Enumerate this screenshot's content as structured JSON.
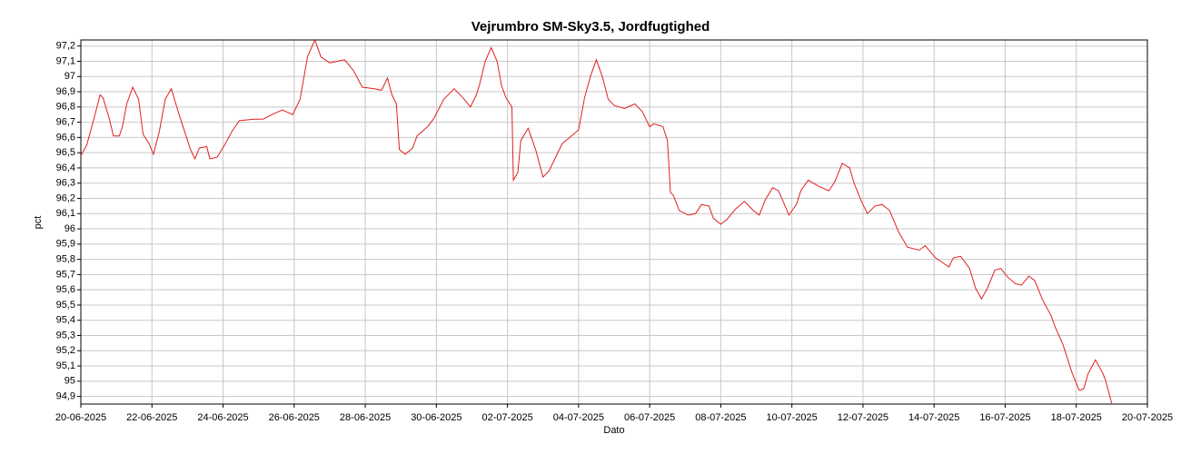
{
  "chart_data": {
    "type": "line",
    "title": "Vejrumbro SM-Sky3.5, Jordfugtighed",
    "x_label": "Dato",
    "y_label": "pct",
    "color": "#e02020",
    "grid": true,
    "xlim": [
      "2025-06-20",
      "2025-07-20"
    ],
    "xticks": [
      {
        "value": "2025-06-20",
        "label": "20-06-2025"
      },
      {
        "value": "2025-06-22",
        "label": "22-06-2025"
      },
      {
        "value": "2025-06-24",
        "label": "24-06-2025"
      },
      {
        "value": "2025-06-26",
        "label": "26-06-2025"
      },
      {
        "value": "2025-06-28",
        "label": "28-06-2025"
      },
      {
        "value": "2025-06-30",
        "label": "30-06-2025"
      },
      {
        "value": "2025-07-02",
        "label": "02-07-2025"
      },
      {
        "value": "2025-07-04",
        "label": "04-07-2025"
      },
      {
        "value": "2025-07-06",
        "label": "06-07-2025"
      },
      {
        "value": "2025-07-08",
        "label": "08-07-2025"
      },
      {
        "value": "2025-07-10",
        "label": "10-07-2025"
      },
      {
        "value": "2025-07-12",
        "label": "12-07-2025"
      },
      {
        "value": "2025-07-14",
        "label": "14-07-2025"
      },
      {
        "value": "2025-07-16",
        "label": "16-07-2025"
      },
      {
        "value": "2025-07-18",
        "label": "18-07-2025"
      },
      {
        "value": "2025-07-20",
        "label": "20-07-2025"
      }
    ],
    "ylim": [
      94.85,
      97.24
    ],
    "yticks": [
      {
        "value": 94.9,
        "label": "94,9"
      },
      95,
      {
        "value": 95.1,
        "label": "95,1"
      },
      {
        "value": 95.2,
        "label": "95,2"
      },
      {
        "value": 95.3,
        "label": "95,3"
      },
      {
        "value": 95.4,
        "label": "95,4"
      },
      {
        "value": 95.5,
        "label": "95,5"
      },
      {
        "value": 95.6,
        "label": "95,6"
      },
      {
        "value": 95.7,
        "label": "95,7"
      },
      {
        "value": 95.8,
        "label": "95,8"
      },
      {
        "value": 95.9,
        "label": "95,9"
      },
      96,
      {
        "value": 96.1,
        "label": "96,1"
      },
      {
        "value": 96.2,
        "label": "96,2"
      },
      {
        "value": 96.3,
        "label": "96,3"
      },
      {
        "value": 96.4,
        "label": "96,4"
      },
      {
        "value": 96.5,
        "label": "96,5"
      },
      {
        "value": 96.6,
        "label": "96,6"
      },
      {
        "value": 96.7,
        "label": "96,7"
      },
      {
        "value": 96.8,
        "label": "96,8"
      },
      {
        "value": 96.9,
        "label": "96,9"
      },
      97,
      {
        "value": 97.1,
        "label": "97,1"
      },
      {
        "value": 97.2,
        "label": "97,2"
      }
    ],
    "x": [
      "2025-06-20 00:00",
      "2025-06-20 04:00",
      "2025-06-20 09:00",
      "2025-06-20 13:00",
      "2025-06-20 15:00",
      "2025-06-20 19:00",
      "2025-06-20 22:00",
      "2025-06-21 02:00",
      "2025-06-21 04:00",
      "2025-06-21 07:00",
      "2025-06-21 11:00",
      "2025-06-21 15:00",
      "2025-06-21 18:00",
      "2025-06-21 22:00",
      "2025-06-22 01:00",
      "2025-06-22 05:00",
      "2025-06-22 09:00",
      "2025-06-22 13:00",
      "2025-06-22 18:00",
      "2025-06-22 23:00",
      "2025-06-23 02:00",
      "2025-06-23 05:00",
      "2025-06-23 08:00",
      "2025-06-23 13:00",
      "2025-06-23 15:00",
      "2025-06-23 20:00",
      "2025-06-24 01:00",
      "2025-06-24 06:00",
      "2025-06-24 11:00",
      "2025-06-24 21:00",
      "2025-06-25 03:00",
      "2025-06-25 09:00",
      "2025-06-25 16:00",
      "2025-06-25 23:00",
      "2025-06-26 04:00",
      "2025-06-26 09:00",
      "2025-06-26 14:00",
      "2025-06-26 18:00",
      "2025-06-27 00:00",
      "2025-06-27 05:00",
      "2025-06-27 10:00",
      "2025-06-27 16:00",
      "2025-06-27 22:00",
      "2025-06-28 06:00",
      "2025-06-28 11:00",
      "2025-06-28 15:00",
      "2025-06-28 18:00",
      "2025-06-28 21:00",
      "2025-06-28 23:00",
      "2025-06-29 03:00",
      "2025-06-29 08:00",
      "2025-06-29 11:00",
      "2025-06-29 18:00",
      "2025-06-29 22:00",
      "2025-06-30 05:00",
      "2025-06-30 12:00",
      "2025-06-30 18:00",
      "2025-06-30 23:00",
      "2025-07-01 03:00",
      "2025-07-01 05:00",
      "2025-07-01 09:00",
      "2025-07-01 13:00",
      "2025-07-01 17:00",
      "2025-07-01 20:00",
      "2025-07-01 23:00",
      "2025-07-02 03:00",
      "2025-07-02 04:00",
      "2025-07-02 07:00",
      "2025-07-02 09:00",
      "2025-07-02 14:00",
      "2025-07-02 19:00",
      "2025-07-03 00:00",
      "2025-07-03 04:00",
      "2025-07-03 09:00",
      "2025-07-03 13:00",
      "2025-07-03 18:00",
      "2025-07-04 00:00",
      "2025-07-04 04:00",
      "2025-07-04 08:00",
      "2025-07-04 12:00",
      "2025-07-04 16:00",
      "2025-07-04 20:00",
      "2025-07-05 00:00",
      "2025-07-05 07:00",
      "2025-07-05 14:00",
      "2025-07-05 19:00",
      "2025-07-06 00:00",
      "2025-07-06 03:00",
      "2025-07-06 09:00",
      "2025-07-06 12:00",
      "2025-07-06 14:00",
      "2025-07-06 16:00",
      "2025-07-06 20:00",
      "2025-07-07 02:00",
      "2025-07-07 07:00",
      "2025-07-07 11:00",
      "2025-07-07 16:00",
      "2025-07-07 19:00",
      "2025-07-08 00:00",
      "2025-07-08 04:00",
      "2025-07-08 10:00",
      "2025-07-08 16:00",
      "2025-07-08 22:00",
      "2025-07-09 02:00",
      "2025-07-09 06:00",
      "2025-07-09 11:00",
      "2025-07-09 15:00",
      "2025-07-09 22:00",
      "2025-07-10 03:00",
      "2025-07-10 06:00",
      "2025-07-10 11:00",
      "2025-07-10 18:00",
      "2025-07-11 01:00",
      "2025-07-11 05:00",
      "2025-07-11 10:00",
      "2025-07-11 15:00",
      "2025-07-11 18:00",
      "2025-07-11 23:00",
      "2025-07-12 03:00",
      "2025-07-12 08:00",
      "2025-07-12 13:00",
      "2025-07-12 18:00",
      "2025-07-13 00:00",
      "2025-07-13 06:00",
      "2025-07-13 14:00",
      "2025-07-13 18:00",
      "2025-07-14 01:00",
      "2025-07-14 10:00",
      "2025-07-14 13:00",
      "2025-07-14 18:00",
      "2025-07-15 00:00",
      "2025-07-15 04:00",
      "2025-07-15 08:00",
      "2025-07-15 12:00",
      "2025-07-15 17:00",
      "2025-07-15 21:00",
      "2025-07-16 02:00",
      "2025-07-16 07:00",
      "2025-07-16 11:00",
      "2025-07-16 16:00",
      "2025-07-16 20:00",
      "2025-07-17 01:00",
      "2025-07-17 07:00",
      "2025-07-17 10:00",
      "2025-07-17 15:00",
      "2025-07-17 21:00",
      "2025-07-18 02:00",
      "2025-07-18 05:00",
      "2025-07-18 08:00",
      "2025-07-18 13:00",
      "2025-07-18 18:00",
      "2025-07-18 20:00",
      "2025-07-19 00:00"
    ],
    "values": [
      96.48,
      96.55,
      96.73,
      96.88,
      96.86,
      96.73,
      96.61,
      96.61,
      96.67,
      96.82,
      96.93,
      96.85,
      96.62,
      96.56,
      96.49,
      96.64,
      96.85,
      96.92,
      96.76,
      96.61,
      96.52,
      96.46,
      96.53,
      96.54,
      96.46,
      96.47,
      96.55,
      96.64,
      96.71,
      96.72,
      96.72,
      96.75,
      96.78,
      96.75,
      96.85,
      97.13,
      97.24,
      97.13,
      97.09,
      97.1,
      97.11,
      97.04,
      96.93,
      96.92,
      96.91,
      96.99,
      96.88,
      96.82,
      96.52,
      96.49,
      96.53,
      96.61,
      96.67,
      96.72,
      96.85,
      96.92,
      96.86,
      96.8,
      96.88,
      96.94,
      97.1,
      97.19,
      97.1,
      96.94,
      96.86,
      96.8,
      96.32,
      96.37,
      96.58,
      96.66,
      96.52,
      96.34,
      96.38,
      96.48,
      96.56,
      96.6,
      96.65,
      96.86,
      97.0,
      97.11,
      97.0,
      96.85,
      96.81,
      96.79,
      96.82,
      96.77,
      96.67,
      96.69,
      96.67,
      96.58,
      96.24,
      96.22,
      96.12,
      96.09,
      96.1,
      96.16,
      96.15,
      96.07,
      96.03,
      96.06,
      96.13,
      96.18,
      96.12,
      96.09,
      96.19,
      96.27,
      96.25,
      96.09,
      96.16,
      96.25,
      96.32,
      96.28,
      96.25,
      96.31,
      96.43,
      96.4,
      96.3,
      96.18,
      96.1,
      96.15,
      96.16,
      96.12,
      95.98,
      95.88,
      95.86,
      95.89,
      95.81,
      95.75,
      95.81,
      95.82,
      95.74,
      95.61,
      95.54,
      95.61,
      95.73,
      95.74,
      95.68,
      95.64,
      95.63,
      95.69,
      95.66,
      95.54,
      95.43,
      95.35,
      95.24,
      95.06,
      94.94,
      94.95,
      95.05,
      95.14,
      95.05,
      95.0,
      94.85
    ]
  }
}
